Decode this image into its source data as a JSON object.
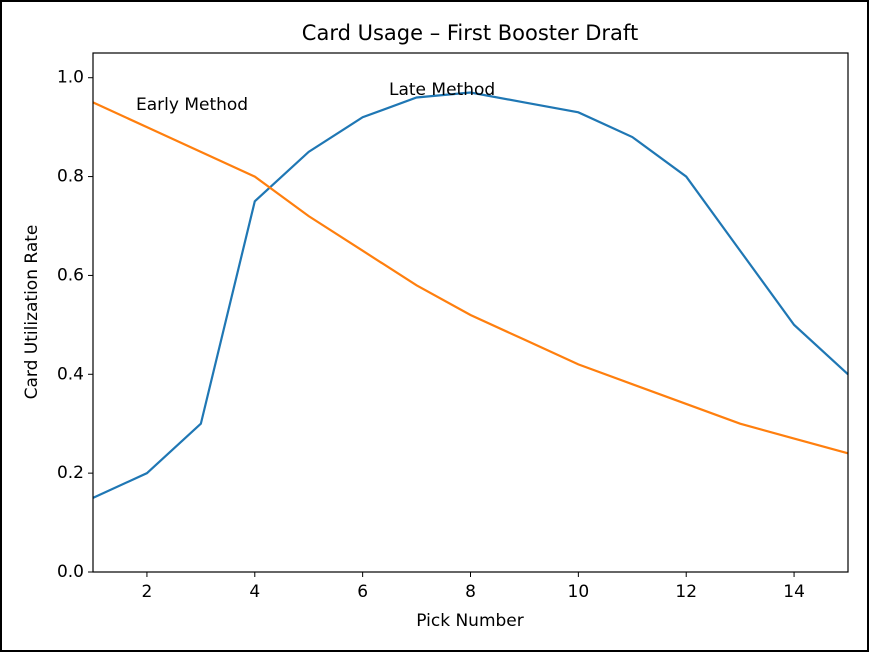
{
  "chart_data": {
    "type": "line",
    "title": "Card Usage – First Booster Draft",
    "x_label": "Pick Number",
    "y_label": "Card Utilization Rate",
    "x": [
      1,
      2,
      3,
      4,
      5,
      6,
      7,
      8,
      9,
      10,
      11,
      12,
      13,
      14,
      15
    ],
    "series": [
      {
        "name": "Late Method",
        "color": "#1f77b4",
        "values": [
          0.15,
          0.2,
          0.3,
          0.75,
          0.85,
          0.92,
          0.96,
          0.97,
          0.95,
          0.93,
          0.88,
          0.8,
          0.65,
          0.5,
          0.4
        ]
      },
      {
        "name": "Early Method",
        "color": "#ff7f0e",
        "values": [
          0.95,
          0.9,
          0.85,
          0.8,
          0.72,
          0.65,
          0.58,
          0.52,
          0.47,
          0.42,
          0.38,
          0.34,
          0.3,
          0.27,
          0.24
        ]
      }
    ],
    "xlim": [
      1,
      15
    ],
    "xticks": [
      2,
      4,
      6,
      8,
      10,
      12,
      14
    ],
    "ylim": [
      0,
      1.05
    ],
    "yticks": [
      {
        "value": 0,
        "label": "0.0"
      },
      0.2,
      0.4,
      0.6,
      0.8,
      {
        "value": 1,
        "label": "1.0"
      }
    ],
    "grid": false
  }
}
